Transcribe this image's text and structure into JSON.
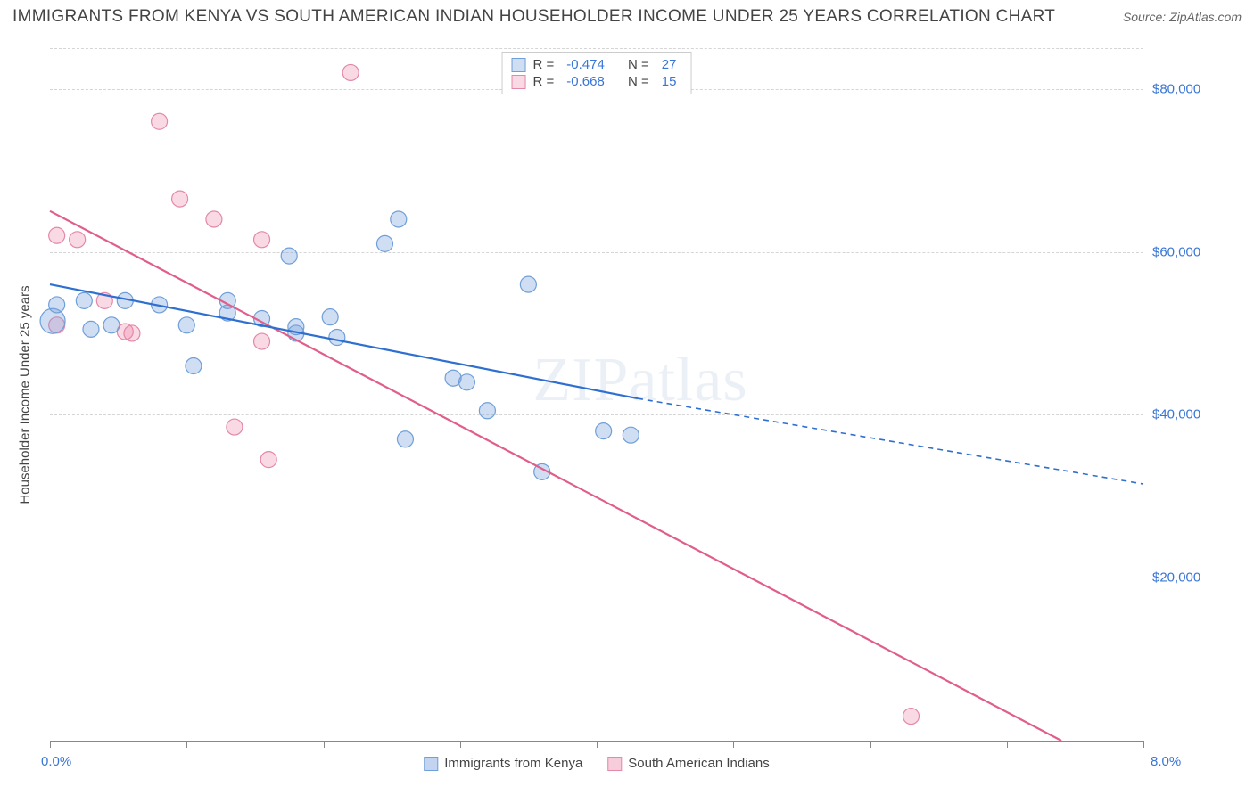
{
  "header": {
    "title": "IMMIGRANTS FROM KENYA VS SOUTH AMERICAN INDIAN HOUSEHOLDER INCOME UNDER 25 YEARS CORRELATION CHART",
    "source": "Source: ZipAtlas.com"
  },
  "chart": {
    "type": "scatter",
    "y_axis_title": "Householder Income Under 25 years",
    "x_min": 0.0,
    "x_max": 8.0,
    "x_min_label": "0.0%",
    "x_max_label": "8.0%",
    "y_min": 0,
    "y_max": 85000,
    "y_ticks": [
      20000,
      40000,
      60000,
      80000
    ],
    "y_tick_labels": [
      "$20,000",
      "$40,000",
      "$60,000",
      "$80,000"
    ],
    "x_tick_positions": [
      0,
      1,
      2,
      3,
      4,
      5,
      6,
      7,
      8
    ],
    "grid_color": "#d5d5d5",
    "background_color": "#ffffff",
    "axis_color": "#888888",
    "watermark": "ZIPatlas",
    "series": [
      {
        "name": "Immigrants from Kenya",
        "fill_color": "rgba(120,160,220,0.35)",
        "stroke_color": "#6f9fd8",
        "line_color": "#2e6fd0",
        "r_label": "R =",
        "r_value": "-0.474",
        "n_label": "N =",
        "n_value": "27",
        "marker_radius": 9,
        "points": [
          {
            "x": 0.02,
            "y": 51500,
            "r": 14
          },
          {
            "x": 0.05,
            "y": 53500
          },
          {
            "x": 0.25,
            "y": 54000
          },
          {
            "x": 0.3,
            "y": 50500
          },
          {
            "x": 0.55,
            "y": 54000
          },
          {
            "x": 0.8,
            "y": 53500
          },
          {
            "x": 1.0,
            "y": 51000
          },
          {
            "x": 1.05,
            "y": 46000
          },
          {
            "x": 1.3,
            "y": 54000
          },
          {
            "x": 1.3,
            "y": 52500
          },
          {
            "x": 1.55,
            "y": 51800
          },
          {
            "x": 1.75,
            "y": 59500
          },
          {
            "x": 1.8,
            "y": 50800
          },
          {
            "x": 1.8,
            "y": 50000
          },
          {
            "x": 2.05,
            "y": 52000
          },
          {
            "x": 2.1,
            "y": 49500
          },
          {
            "x": 2.45,
            "y": 61000
          },
          {
            "x": 2.55,
            "y": 64000
          },
          {
            "x": 2.6,
            "y": 37000
          },
          {
            "x": 2.95,
            "y": 44500
          },
          {
            "x": 3.05,
            "y": 44000
          },
          {
            "x": 3.2,
            "y": 40500
          },
          {
            "x": 3.5,
            "y": 56000
          },
          {
            "x": 3.6,
            "y": 33000
          },
          {
            "x": 4.05,
            "y": 38000
          },
          {
            "x": 4.25,
            "y": 37500
          },
          {
            "x": 0.45,
            "y": 51000
          }
        ],
        "trend": {
          "x1": 0.0,
          "y1": 56000,
          "x2": 4.3,
          "y2": 42000
        },
        "trend_ext": {
          "x1": 4.3,
          "y1": 42000,
          "x2": 8.0,
          "y2": 31500
        }
      },
      {
        "name": "South American Indians",
        "fill_color": "rgba(235,130,165,0.30)",
        "stroke_color": "#e488a8",
        "line_color": "#e15e8a",
        "r_label": "R =",
        "r_value": "-0.668",
        "n_label": "N =",
        "n_value": "15",
        "marker_radius": 9,
        "points": [
          {
            "x": 0.05,
            "y": 62000
          },
          {
            "x": 0.2,
            "y": 61500
          },
          {
            "x": 0.4,
            "y": 54000
          },
          {
            "x": 0.55,
            "y": 50200
          },
          {
            "x": 0.6,
            "y": 50000
          },
          {
            "x": 0.8,
            "y": 76000
          },
          {
            "x": 0.95,
            "y": 66500
          },
          {
            "x": 1.2,
            "y": 64000
          },
          {
            "x": 1.35,
            "y": 38500
          },
          {
            "x": 1.55,
            "y": 61500
          },
          {
            "x": 1.55,
            "y": 49000
          },
          {
            "x": 1.6,
            "y": 34500
          },
          {
            "x": 2.2,
            "y": 82000
          },
          {
            "x": 6.3,
            "y": 3000
          },
          {
            "x": 0.05,
            "y": 51000
          }
        ],
        "trend": {
          "x1": 0.0,
          "y1": 65000,
          "x2": 7.4,
          "y2": 0
        }
      }
    ],
    "legend_bottom": [
      {
        "label": "Immigrants from Kenya",
        "fill": "rgba(120,160,220,0.45)",
        "stroke": "#6f9fd8"
      },
      {
        "label": "South American Indians",
        "fill": "rgba(235,130,165,0.40)",
        "stroke": "#e488a8"
      }
    ]
  }
}
